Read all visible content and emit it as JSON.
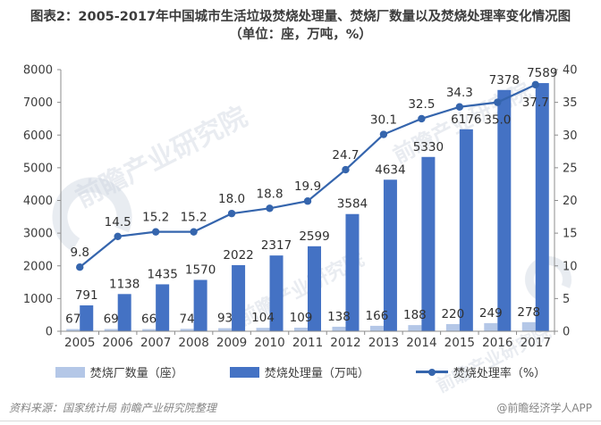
{
  "title": {
    "line1": "图表2：2005-2017年中国城市生活垃圾焚烧处理量、焚烧厂数量以及焚烧处理率变化情况图",
    "line2": "（单位：座，万吨，%）"
  },
  "chart_data": {
    "type": "combo-bar-line",
    "categories": [
      "2005",
      "2006",
      "2007",
      "2008",
      "2009",
      "2010",
      "2011",
      "2012",
      "2013",
      "2014",
      "2015",
      "2016",
      "2017"
    ],
    "series": [
      {
        "name": "焚烧厂数量（座）",
        "type": "bar",
        "axis": "left",
        "color": "#B4C7E7",
        "values": [
          67,
          69,
          66,
          74,
          93,
          104,
          109,
          138,
          166,
          188,
          220,
          249,
          278
        ]
      },
      {
        "name": "焚烧处理量（万吨）",
        "type": "bar",
        "axis": "left",
        "color": "#4472C4",
        "values": [
          791,
          1138,
          1435,
          1570,
          2022,
          2317,
          2599,
          3584,
          4634,
          5330,
          6176,
          7378,
          7589
        ]
      },
      {
        "name": "焚烧处理率（%）",
        "type": "line",
        "axis": "right",
        "color": "#3565AD",
        "values": [
          9.8,
          14.5,
          15.2,
          15.2,
          18.0,
          18.8,
          19.9,
          24.7,
          30.1,
          32.5,
          34.3,
          35.0,
          37.7
        ],
        "labels": [
          "9.8",
          "14.5",
          "15.2",
          "15.2",
          "18.0",
          "18.8",
          "19.9",
          "24.7",
          "30.1",
          "32.5",
          "34.3",
          "35.0",
          "37.7"
        ]
      }
    ],
    "left_axis": {
      "min": 0,
      "max": 8000,
      "step": 1000
    },
    "right_axis": {
      "min": 0,
      "max": 40,
      "step": 5
    },
    "grid": false,
    "legend_position": "bottom",
    "colors": {
      "axis": "#8c8c8c",
      "tick_label": "#3c3c3c",
      "data_label": "#303030"
    }
  },
  "watermark": {
    "text": "前瞻产业研究院",
    "logo": "qianzhan-ring-logo"
  },
  "footer": {
    "source": "资料来源：国家统计局  前瞻产业研究院整理",
    "credit": "@前瞻经济学人APP"
  }
}
